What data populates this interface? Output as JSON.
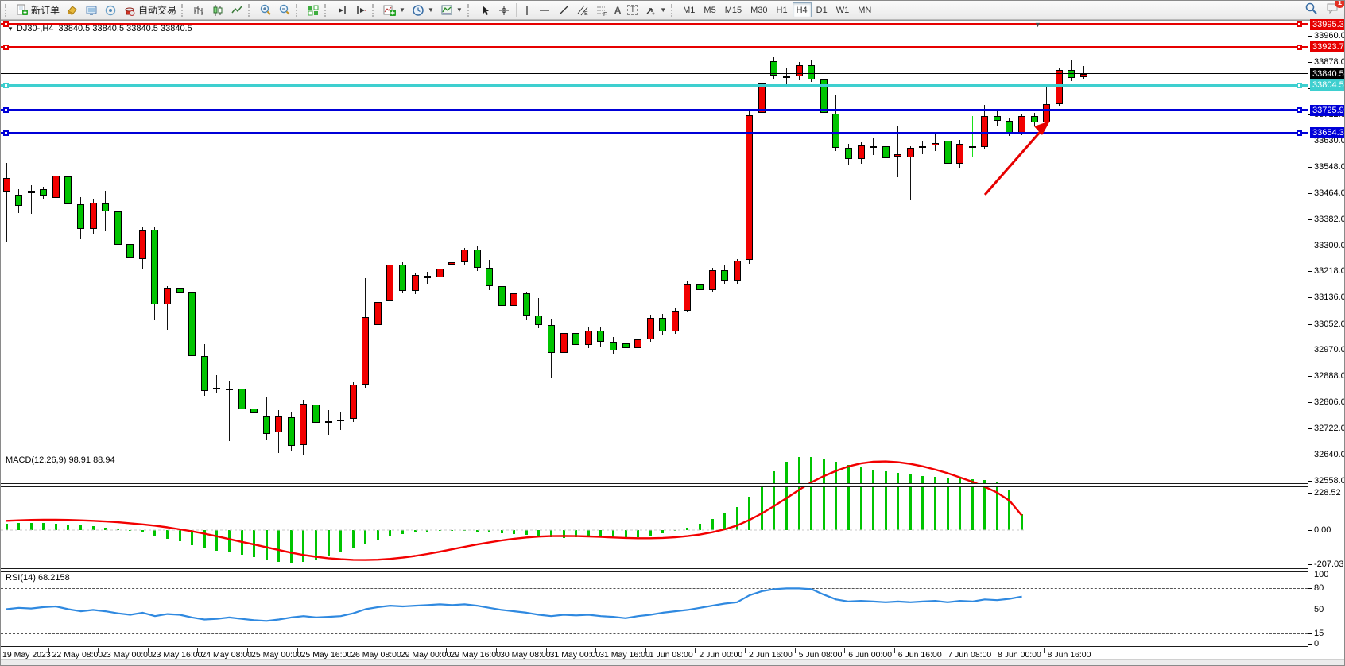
{
  "toolbar": {
    "new_order_label": "新订单",
    "auto_trading_label": "自动交易",
    "chat_badge": "1",
    "timeframes": [
      "M1",
      "M5",
      "M15",
      "M30",
      "H1",
      "H4",
      "D1",
      "W1",
      "MN"
    ],
    "active_timeframe": "H4",
    "icons": [
      "new-order",
      "styler",
      "market-watch",
      "signal",
      "auto-trading",
      "bar-chart",
      "candlestick-chart",
      "line-chart",
      "zoom-in",
      "zoom-out",
      "tile-windows",
      "auto-scroll",
      "chart-shift",
      "add-indicator",
      "period-selector",
      "template-selector",
      "cursor",
      "crosshair",
      "vertical-line",
      "horizontal-line",
      "trendline",
      "equidistant-channel",
      "fibonacci",
      "text",
      "text-label",
      "arrows",
      "search",
      "chat"
    ]
  },
  "chart": {
    "symbol_period": "DJ30-,H4",
    "ohlc_line": "33840.5 33840.5 33840.5 33840.5"
  },
  "price_axis": {
    "current_price": "33840.5",
    "ticks": [
      "33960.0",
      "33878.0",
      "33794.0",
      "33712.0",
      "33630.0",
      "33548.0",
      "33464.0",
      "33382.0",
      "33300.0",
      "33218.0",
      "33136.0",
      "33052.0",
      "32970.0",
      "32888.0",
      "32806.0",
      "32722.0",
      "32640.0",
      "32558.0"
    ]
  },
  "hlines": [
    {
      "price": 33995.3,
      "label": "33995.3",
      "color": "#e60000",
      "type": "object"
    },
    {
      "price": 33923.7,
      "label": "33923.7",
      "color": "#e60000",
      "type": "object"
    },
    {
      "price": 33840.5,
      "label": "33840.5",
      "color": "#000000",
      "type": "bid"
    },
    {
      "price": 33804.5,
      "label": "33804.5",
      "color": "#3ecfcf",
      "type": "object"
    },
    {
      "price": 33725.9,
      "label": "33725.9",
      "color": "#0000d8",
      "type": "object"
    },
    {
      "price": 33654.3,
      "label": "33654.3",
      "color": "#0000d8",
      "type": "object"
    }
  ],
  "time_axis": [
    "19 May 2023",
    "22 May 08:00",
    "23 May 00:00",
    "23 May 16:00",
    "24 May 08:00",
    "25 May 00:00",
    "25 May 16:00",
    "26 May 08:00",
    "29 May 00:00",
    "29 May 16:00",
    "30 May 08:00",
    "31 May 00:00",
    "31 May 16:00",
    "1 Jun 08:00",
    "2 Jun 00:00",
    "2 Jun 16:00",
    "5 Jun 08:00",
    "6 Jun 00:00",
    "6 Jun 16:00",
    "7 Jun 08:00",
    "8 Jun 00:00",
    "8 Jun 16:00"
  ],
  "macd": {
    "label": "MACD(12,26,9)",
    "values": "98.91 88.94",
    "axis_ticks": [
      "228.52",
      "0.00",
      "-207.03"
    ]
  },
  "rsi": {
    "label": "RSI(14)",
    "value": "68.2158",
    "axis_ticks": [
      "100",
      "80",
      "50",
      "15",
      "0"
    ],
    "dashed_levels": [
      80,
      50,
      15
    ]
  },
  "objects": {
    "arrow": {
      "color": "#e60000",
      "direction": "up-right"
    }
  },
  "chart_data": {
    "type": "candlestick",
    "title": "DJ30-,H4",
    "up_color": "#f20000",
    "down_color": "#00c400",
    "y_axis_range": [
      32520,
      34010
    ],
    "candles": [
      [
        33470,
        33560,
        33310,
        33512
      ],
      [
        33460,
        33478,
        33402,
        33424
      ],
      [
        33464,
        33490,
        33400,
        33472
      ],
      [
        33476,
        33484,
        33446,
        33458
      ],
      [
        33448,
        33532,
        33438,
        33520
      ],
      [
        33518,
        33582,
        33262,
        33430
      ],
      [
        33430,
        33452,
        33318,
        33352
      ],
      [
        33352,
        33446,
        33336,
        33434
      ],
      [
        33432,
        33472,
        33344,
        33406
      ],
      [
        33406,
        33414,
        33278,
        33302
      ],
      [
        33304,
        33316,
        33216,
        33258
      ],
      [
        33256,
        33356,
        33226,
        33346
      ],
      [
        33348,
        33356,
        33064,
        33114
      ],
      [
        33114,
        33172,
        33034,
        33164
      ],
      [
        33164,
        33192,
        33118,
        33150
      ],
      [
        33152,
        33162,
        32936,
        32950
      ],
      [
        32950,
        32988,
        32826,
        32840
      ],
      [
        32852,
        32892,
        32834,
        32846
      ],
      [
        32844,
        32872,
        32683,
        32848
      ],
      [
        32848,
        32862,
        32698,
        32784
      ],
      [
        32786,
        32804,
        32740,
        32770
      ],
      [
        32762,
        32822,
        32686,
        32706
      ],
      [
        32710,
        32782,
        32645,
        32762
      ],
      [
        32758,
        32774,
        32650,
        32668
      ],
      [
        32670,
        32814,
        32640,
        32800
      ],
      [
        32798,
        32812,
        32726,
        32740
      ],
      [
        32742,
        32780,
        32704,
        32746
      ],
      [
        32748,
        32774,
        32718,
        32752
      ],
      [
        32752,
        32868,
        32742,
        32860
      ],
      [
        32860,
        33196,
        32850,
        33074
      ],
      [
        33048,
        33162,
        33038,
        33122
      ],
      [
        33124,
        33254,
        33114,
        33240
      ],
      [
        33240,
        33246,
        33148,
        33156
      ],
      [
        33156,
        33212,
        33146,
        33206
      ],
      [
        33204,
        33216,
        33180,
        33196
      ],
      [
        33198,
        33232,
        33190,
        33226
      ],
      [
        33240,
        33260,
        33226,
        33246
      ],
      [
        33246,
        33292,
        33236,
        33286
      ],
      [
        33286,
        33298,
        33220,
        33230
      ],
      [
        33230,
        33254,
        33158,
        33172
      ],
      [
        33172,
        33182,
        33094,
        33108
      ],
      [
        33108,
        33158,
        33096,
        33150
      ],
      [
        33150,
        33154,
        33064,
        33078
      ],
      [
        33078,
        33134,
        33038,
        33048
      ],
      [
        33048,
        33066,
        32880,
        32962
      ],
      [
        32962,
        33032,
        32914,
        33024
      ],
      [
        33024,
        33048,
        32970,
        32986
      ],
      [
        32986,
        33042,
        32976,
        33032
      ],
      [
        33032,
        33040,
        32982,
        32996
      ],
      [
        32996,
        33012,
        32958,
        32968
      ],
      [
        32990,
        33010,
        32818,
        32976
      ],
      [
        32976,
        33014,
        32950,
        33004
      ],
      [
        33004,
        33080,
        32996,
        33072
      ],
      [
        33072,
        33084,
        33018,
        33028
      ],
      [
        33028,
        33102,
        33020,
        33094
      ],
      [
        33094,
        33186,
        33088,
        33178
      ],
      [
        33178,
        33230,
        33150,
        33160
      ],
      [
        33160,
        33228,
        33154,
        33222
      ],
      [
        33222,
        33240,
        33180,
        33190
      ],
      [
        33190,
        33256,
        33178,
        33252
      ],
      [
        33254,
        33722,
        33242,
        33710
      ],
      [
        33716,
        33862,
        33684,
        33810
      ],
      [
        33880,
        33892,
        33824,
        33834
      ],
      [
        33832,
        33858,
        33798,
        33830
      ],
      [
        33832,
        33878,
        33820,
        33868
      ],
      [
        33868,
        33882,
        33816,
        33822
      ],
      [
        33822,
        33830,
        33710,
        33716
      ],
      [
        33714,
        33772,
        33598,
        33608
      ],
      [
        33608,
        33620,
        33554,
        33572
      ],
      [
        33572,
        33624,
        33558,
        33614
      ],
      [
        33612,
        33636,
        33584,
        33610
      ],
      [
        33612,
        33628,
        33564,
        33574
      ],
      [
        33580,
        33676,
        33514,
        33586
      ],
      [
        33578,
        33612,
        33442,
        33606
      ],
      [
        33606,
        33630,
        33588,
        33612
      ],
      [
        33614,
        33652,
        33598,
        33622
      ],
      [
        33630,
        33642,
        33546,
        33556
      ],
      [
        33556,
        33632,
        33542,
        33620
      ],
      [
        33608,
        33706,
        33578,
        33612,
        "lime"
      ],
      [
        33610,
        33742,
        33602,
        33708
      ],
      [
        33708,
        33730,
        33678,
        33692
      ],
      [
        33692,
        33702,
        33644,
        33654
      ],
      [
        33654,
        33712,
        33646,
        33706
      ],
      [
        33706,
        33718,
        33678,
        33688
      ],
      [
        33688,
        33802,
        33676,
        33744
      ],
      [
        33744,
        33858,
        33738,
        33852
      ],
      [
        33852,
        33882,
        33818,
        33828
      ],
      [
        33830,
        33864,
        33822,
        33840.5
      ]
    ],
    "indicators": {
      "macd": {
        "name": "MACD(12,26,9)",
        "hist_color": "#00c400",
        "signal_color": "#f20000",
        "range": [
          -207.03,
          228.52
        ],
        "histogram": [
          40,
          42,
          45,
          43,
          40,
          35,
          28,
          22,
          15,
          5,
          -6,
          -15,
          -35,
          -55,
          -70,
          -90,
          -110,
          -125,
          -138,
          -152,
          -166,
          -182,
          -196,
          -206,
          -196,
          -180,
          -160,
          -138,
          -114,
          -85,
          -60,
          -40,
          -25,
          -14,
          -8,
          -5,
          -3,
          -5,
          -8,
          -12,
          -18,
          -25,
          -30,
          -38,
          -45,
          -48,
          -45,
          -40,
          -38,
          -42,
          -50,
          -46,
          -36,
          -20,
          -4,
          15,
          40,
          70,
          100,
          140,
          205,
          285,
          360,
          420,
          447,
          445,
          435,
          420,
          400,
          385,
          370,
          358,
          348,
          340,
          333,
          327,
          322,
          317,
          312,
          305,
          295,
          245,
          99
        ],
        "signal": [
          57,
          60,
          62,
          63,
          63,
          62,
          60,
          57,
          53,
          48,
          42,
          35,
          27,
          17,
          5,
          -8,
          -22,
          -38,
          -55,
          -72,
          -88,
          -105,
          -122,
          -138,
          -152,
          -163,
          -172,
          -178,
          -182,
          -183,
          -181,
          -176,
          -168,
          -158,
          -146,
          -132,
          -117,
          -102,
          -88,
          -75,
          -63,
          -53,
          -45,
          -40,
          -37,
          -36,
          -37,
          -39,
          -42,
          -45,
          -48,
          -50,
          -50,
          -48,
          -44,
          -37,
          -27,
          -13,
          5,
          28,
          62,
          102,
          148,
          196,
          246,
          292,
          330,
          362,
          390,
          408,
          418,
          420,
          415,
          405,
          390,
          370,
          348,
          322,
          295,
          265,
          230,
          180,
          89
        ]
      },
      "rsi": {
        "name": "RSI(14)",
        "color": "#2f89e0",
        "range": [
          0,
          100
        ],
        "line": [
          50,
          52,
          51,
          53,
          54,
          50,
          47,
          49,
          47,
          44,
          42,
          45,
          40,
          43,
          42,
          38,
          35,
          36,
          38,
          36,
          34,
          33,
          35,
          38,
          40,
          38,
          39,
          40,
          44,
          50,
          53,
          55,
          54,
          55,
          56,
          57,
          56,
          57,
          55,
          52,
          49,
          47,
          45,
          42,
          40,
          42,
          41,
          42,
          40,
          39,
          37,
          40,
          42,
          45,
          47,
          49,
          52,
          55,
          58,
          60,
          70,
          76,
          79,
          80,
          80,
          79,
          71,
          64,
          61,
          62,
          61,
          60,
          61,
          60,
          61,
          62,
          60,
          62,
          61,
          64,
          63,
          65,
          68.2
        ]
      }
    }
  }
}
